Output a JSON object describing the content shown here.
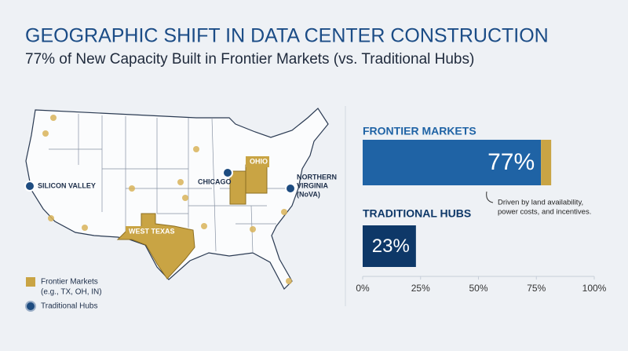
{
  "title": "GEOGRAPHIC SHIFT IN DATA CENTER CONSTRUCTION",
  "subtitle": "77% of New Capacity Built in Frontier Markets (vs. Traditional Hubs)",
  "map": {
    "labels": {
      "silicon_valley": "SILICON VALLEY",
      "chicago": "CHICAGO",
      "ohio": "OHIO",
      "northern_virginia": [
        "NORTHERN",
        "VIRGINIA",
        "(NoVA)"
      ],
      "west_texas": "WEST TEXAS"
    }
  },
  "legend": {
    "frontier": [
      "Frontier Markets",
      "(e.g., TX, OH, IN)"
    ],
    "traditional": "Traditional Hubs"
  },
  "chart_data": {
    "type": "bar",
    "orientation": "horizontal",
    "categories": [
      "FRONTIER MARKETS",
      "TRADITIONAL HUBS"
    ],
    "values": [
      77,
      23
    ],
    "value_labels": [
      "77%",
      "23%"
    ],
    "colors": [
      "#1f63a5",
      "#0e3868"
    ],
    "xlim": [
      0,
      100
    ],
    "xticks": [
      {
        "value": 0,
        "label": "0%"
      },
      {
        "value": 25,
        "label": "25%"
      },
      {
        "value": 50,
        "label": "50%"
      },
      {
        "value": 75,
        "label": "75%"
      },
      {
        "value": 100,
        "label": "100%"
      }
    ],
    "annotation": [
      "Driven by land availability,",
      "power costs, and incentives."
    ]
  }
}
